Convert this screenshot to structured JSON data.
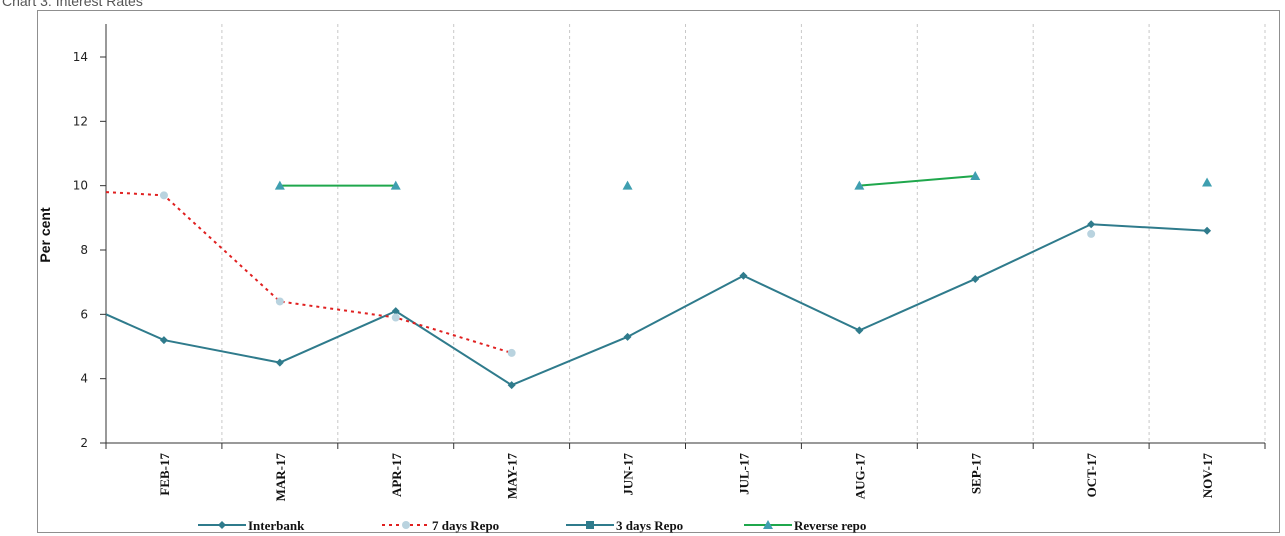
{
  "page": {
    "header_text": "Chart 3: Interest Rates"
  },
  "chart_data": {
    "type": "line",
    "title": "",
    "ylabel": "Per cent",
    "xlabel": "",
    "ylim": [
      2,
      15
    ],
    "yticks": [
      2,
      4,
      6,
      8,
      10,
      12,
      14
    ],
    "categories": [
      "FEB-17",
      "MAR-17",
      "APR-17",
      "MAY-17",
      "JUN-17",
      "JUL-17",
      "AUG-17",
      "SEP-17",
      "OCT-17",
      "NOV-17"
    ],
    "grid": {
      "vertical": true,
      "horizontal": false,
      "style": "dotted"
    },
    "legend": "bottom",
    "series": [
      {
        "name": "Interbank",
        "color": "#2f7b8c",
        "style": "solid",
        "marker": "diamond",
        "values": [
          5.2,
          4.5,
          6.1,
          3.8,
          5.3,
          7.2,
          5.5,
          7.1,
          8.8,
          8.6
        ],
        "start_value": 6.0
      },
      {
        "name": "7 days Repo",
        "color": "#e02020",
        "marker_color": "#b9d3df",
        "style": "dotted",
        "marker": "circle",
        "values": [
          9.7,
          6.4,
          5.9,
          4.8,
          null,
          null,
          null,
          null,
          8.5,
          null
        ],
        "start_value": 9.8
      },
      {
        "name": "3 days Repo",
        "color": "#2f7b8c",
        "style": "solid",
        "marker": "square",
        "values": [
          null,
          null,
          null,
          null,
          null,
          null,
          null,
          null,
          null,
          null
        ]
      },
      {
        "name": "Reverse repo",
        "color": "#1fa74c",
        "marker_color": "#3f9fb0",
        "style": "solid",
        "marker": "triangle",
        "values": [
          null,
          10.0,
          10.0,
          null,
          10.0,
          null,
          10.0,
          10.3,
          null,
          10.1
        ]
      }
    ]
  }
}
